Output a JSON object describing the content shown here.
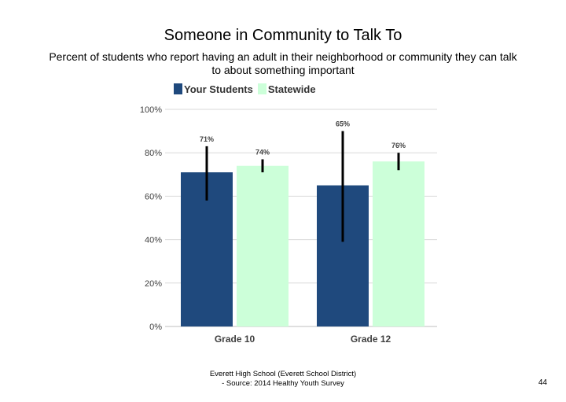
{
  "chart_data": {
    "type": "bar",
    "title": "Someone in Community to Talk To",
    "subtitle": "Percent of students who report having an adult in their neighborhood or community they can talk to about something important",
    "categories": [
      "Grade 10",
      "Grade 12"
    ],
    "series": [
      {
        "name": "Your Students",
        "color": "#1f497d",
        "values": [
          71,
          65
        ],
        "data_labels": [
          "71%",
          "65%"
        ],
        "error_low": [
          58,
          39
        ],
        "error_high": [
          83,
          90
        ]
      },
      {
        "name": "Statewide",
        "color": "#ccffd9",
        "values": [
          74,
          76
        ],
        "data_labels": [
          "74%",
          "76%"
        ],
        "error_low": [
          71,
          72
        ],
        "error_high": [
          77,
          80
        ]
      }
    ],
    "ylim": [
      0,
      100
    ],
    "yticks": [
      "0%",
      "20%",
      "40%",
      "60%",
      "80%",
      "100%"
    ],
    "ytick_values": [
      0,
      20,
      40,
      60,
      80,
      100
    ],
    "grid": true,
    "legend_position": "top-left"
  },
  "footer": {
    "line1": "Everett High School (Everett School District)",
    "line2": "- Source: 2014 Healthy Youth Survey"
  },
  "page_number": "44"
}
